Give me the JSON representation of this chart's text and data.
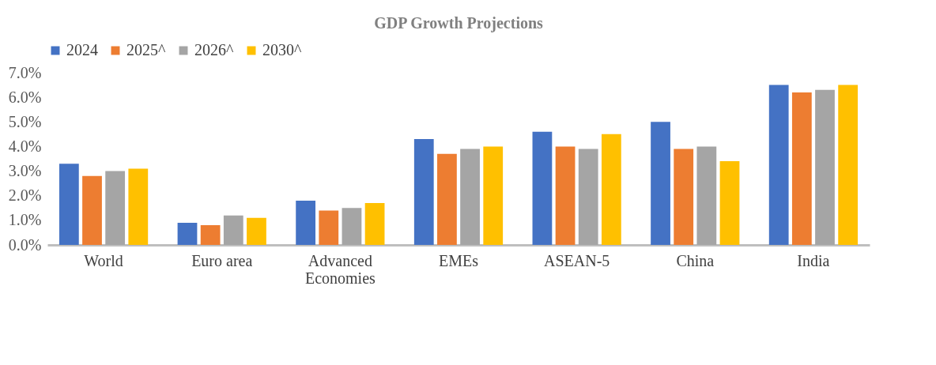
{
  "chart_data": {
    "type": "bar",
    "title": "GDP Growth Projections",
    "categories": [
      "World",
      "Euro area",
      "Advanced Economies",
      "EMEs",
      "ASEAN-5",
      "China",
      "India"
    ],
    "series": [
      {
        "name": "2024",
        "color": "#4472c4",
        "values": [
          3.3,
          0.9,
          1.8,
          4.3,
          4.6,
          5.0,
          6.5
        ]
      },
      {
        "name": "2025^",
        "color": "#ed7d31",
        "values": [
          2.8,
          0.8,
          1.4,
          3.7,
          4.0,
          3.9,
          6.2
        ]
      },
      {
        "name": "2026^",
        "color": "#a5a5a5",
        "values": [
          3.0,
          1.2,
          1.5,
          3.9,
          3.9,
          4.0,
          6.3
        ]
      },
      {
        "name": "2030^",
        "color": "#ffc000",
        "values": [
          3.1,
          1.1,
          1.7,
          4.0,
          4.5,
          3.4,
          6.5
        ]
      }
    ],
    "ylim": [
      0,
      7
    ],
    "yticks": [
      {
        "value": 0,
        "label": "0.0%"
      },
      {
        "value": 1,
        "label": "1.0%"
      },
      {
        "value": 2,
        "label": "2.0%"
      },
      {
        "value": 3,
        "label": "3.0%"
      },
      {
        "value": 4,
        "label": "4.0%"
      },
      {
        "value": 5,
        "label": "5.0%"
      },
      {
        "value": 6,
        "label": "6.0%"
      },
      {
        "value": 7,
        "label": "7.0%"
      }
    ],
    "grid": false,
    "legend": "top"
  }
}
